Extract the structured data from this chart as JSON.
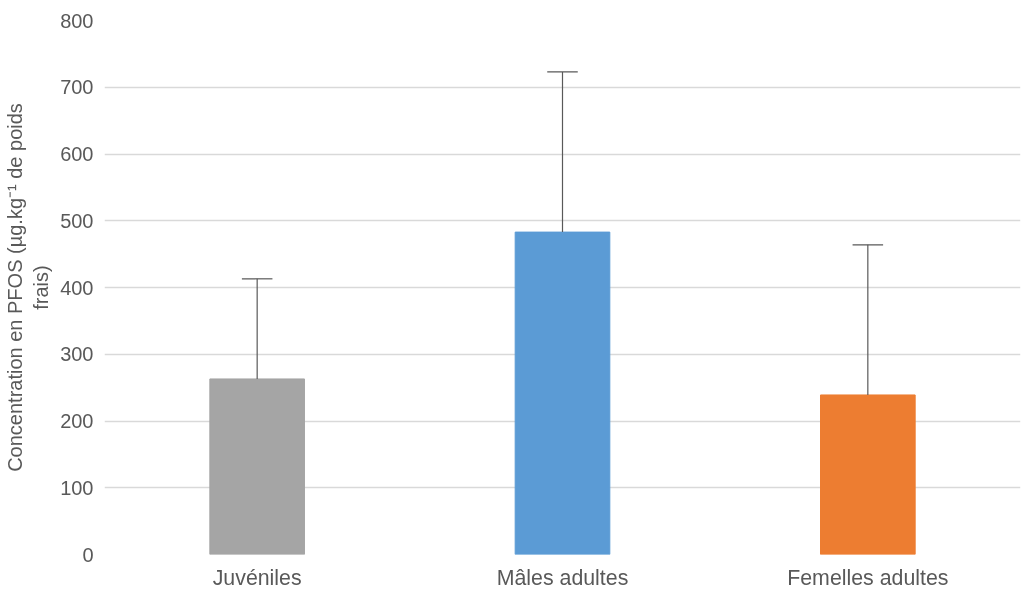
{
  "chart_data": {
    "type": "bar",
    "categories": [
      "Juvéniles",
      "Mâles adultes",
      "Femelles adultes"
    ],
    "values": [
      263,
      483,
      239
    ],
    "colors": [
      "#a5a5a5",
      "#5b9bd5",
      "#ed7d31"
    ],
    "errors": [
      [
        263,
        413
      ],
      [
        483,
        723
      ],
      [
        239,
        464
      ]
    ],
    "ylabel": "Concentration en PFOS (µg.kg⁻¹ de poids frais)",
    "ylim": [
      0,
      800
    ],
    "yticks": [
      0,
      100,
      200,
      300,
      400,
      500,
      600,
      700,
      800
    ],
    "grid": "y"
  }
}
